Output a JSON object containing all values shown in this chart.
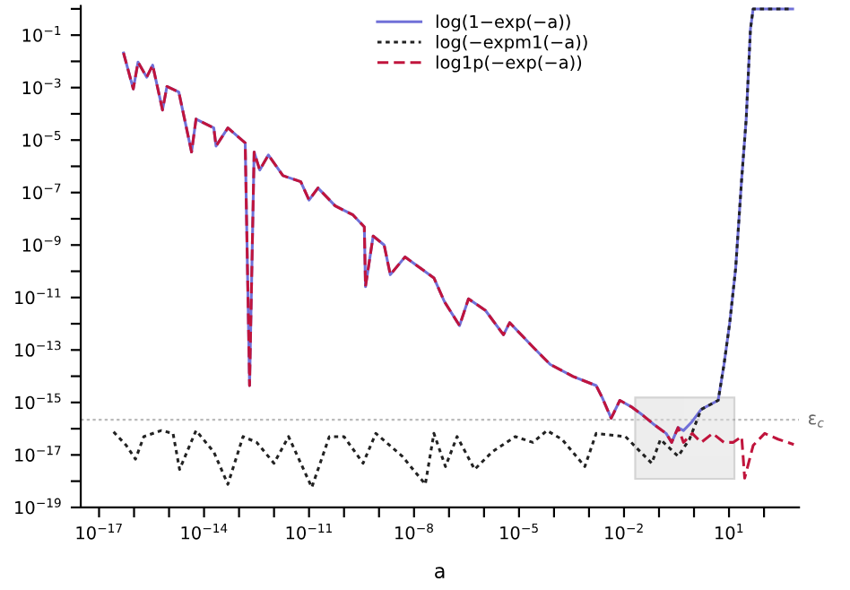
{
  "chart_data": {
    "type": "line",
    "xlabel": "a",
    "series": [
      {
        "name": "log(1−exp(−a))",
        "color": "#7070d8",
        "line_style": "solid",
        "x": [
          5e-17,
          9.5e-17,
          1.3e-16,
          2.3e-16,
          3.4e-16,
          6.5e-16,
          8.7e-16,
          1.9e-15,
          4.4e-15,
          5.9e-15,
          1.9e-14,
          2.2e-14,
          4.8e-14,
          1.5e-13,
          2e-13,
          2.7e-13,
          3.9e-13,
          6.9e-13,
          1.8e-12,
          5.8e-12,
          1e-11,
          1.8e-11,
          5.6e-11,
          1.8e-10,
          3.8e-10,
          4.1e-10,
          6.8e-10,
          1.4e-09,
          2.1e-09,
          5.5e-09,
          3.7e-08,
          7.4e-08,
          2e-07,
          3.6e-07,
          1.1e-06,
          3.6e-06,
          5.4e-06,
          2.5e-05,
          7.8e-05,
          0.00035,
          0.0016,
          0.0024,
          0.0043,
          0.0076,
          0.016,
          0.035,
          0.074,
          0.16,
          0.23,
          0.35,
          0.5,
          0.89,
          1.6,
          4.9,
          7.2,
          10.5,
          15.5,
          23,
          31,
          41,
          49,
          660
        ],
        "values": [
          0.021,
          0.00089,
          0.0093,
          0.0025,
          0.0072,
          0.00014,
          0.0011,
          0.00068,
          3.5e-06,
          6.3e-05,
          2.9e-05,
          5.9e-06,
          2.9e-05,
          7.8e-06,
          4.4e-15,
          3.5e-06,
          7.2e-07,
          2.7e-06,
          4.4e-07,
          2.6e-07,
          5.2e-08,
          1.5e-07,
          3.1e-08,
          1.4e-08,
          4.9e-09,
          2.6e-11,
          2.2e-09,
          1e-09,
          7.4e-11,
          3.5e-10,
          5.6e-11,
          6.9e-12,
          8.5e-13,
          8.9e-12,
          3.2e-12,
          3.8e-13,
          1.1e-12,
          1.3e-13,
          2.8e-14,
          9.8e-15,
          4.4e-15,
          1.5e-15,
          2.5e-16,
          1.2e-15,
          6.9e-16,
          3.2e-16,
          1.4e-16,
          6.6e-17,
          3e-17,
          1.1e-16,
          8.5e-17,
          1.9e-16,
          5.4e-16,
          1.2e-15,
          2.8e-14,
          1.1e-12,
          1.3e-10,
          3.3e-07,
          6.3e-05,
          0.17,
          1,
          1
        ]
      },
      {
        "name": "log(−expm1(−a))",
        "color": "#222222",
        "line_style": "dotted",
        "x": [
          2.6e-17,
          6e-17,
          1.1e-16,
          1.9e-16,
          6e-16,
          1.3e-15,
          2e-15,
          5.9e-15,
          1.9e-14,
          4.8e-14,
          1.3e-13,
          3.2e-13,
          1e-12,
          2.6e-12,
          1.2e-11,
          3.8e-11,
          1e-10,
          3.5e-10,
          8.1e-10,
          4.6e-09,
          2.1e-08,
          3.7e-08,
          7.9e-08,
          1.7e-07,
          5.4e-07,
          1.7e-06,
          7.8e-06,
          2.5e-05,
          6.3e-05,
          0.00017,
          0.00076,
          0.0016,
          0.011,
          0.062,
          0.11,
          0.35,
          0.74,
          1.6,
          4.9,
          7.2,
          10.5,
          15.5,
          23,
          31,
          41,
          49,
          660
        ],
        "values": [
          7.6e-17,
          2.3e-17,
          6.9e-18,
          5e-17,
          8.5e-17,
          6.6e-17,
          2.8e-18,
          8.5e-17,
          1.3e-17,
          7.6e-19,
          5e-17,
          3e-17,
          4.8e-18,
          5e-17,
          5.8e-19,
          5e-17,
          5e-17,
          4.8e-18,
          6.6e-17,
          8.9e-18,
          7.6e-19,
          6.6e-17,
          3.6e-18,
          5e-17,
          2.8e-18,
          1.3e-17,
          5e-17,
          3e-17,
          8.5e-17,
          3.9e-17,
          3.6e-18,
          6.6e-17,
          5e-17,
          4.8e-18,
          3.9e-17,
          8.9e-18,
          3.9e-17,
          5.4e-16,
          1.2e-15,
          2.8e-14,
          1.1e-12,
          1.3e-10,
          3.3e-07,
          6.3e-05,
          0.17,
          1,
          1
        ]
      },
      {
        "name": "log1p(−exp(−a))",
        "color": "#c0143c",
        "line_style": "dashed",
        "x": [
          5e-17,
          9.5e-17,
          1.3e-16,
          2.3e-16,
          3.4e-16,
          6.5e-16,
          8.7e-16,
          1.9e-15,
          4.4e-15,
          5.9e-15,
          1.9e-14,
          2.2e-14,
          4.8e-14,
          1.5e-13,
          2e-13,
          2.7e-13,
          3.9e-13,
          6.9e-13,
          1.8e-12,
          5.8e-12,
          1e-11,
          1.8e-11,
          5.6e-11,
          1.8e-10,
          3.8e-10,
          4.1e-10,
          6.8e-10,
          1.4e-09,
          2.1e-09,
          5.5e-09,
          3.7e-08,
          7.4e-08,
          2e-07,
          3.6e-07,
          1.1e-06,
          3.6e-06,
          5.4e-06,
          2.5e-05,
          7.8e-05,
          0.00035,
          0.0016,
          0.0024,
          0.0043,
          0.0076,
          0.016,
          0.035,
          0.074,
          0.16,
          0.23,
          0.35,
          0.5,
          0.89,
          1.6,
          3.4,
          7.2,
          13,
          23,
          28,
          49,
          105,
          250,
          710
        ],
        "values": [
          0.021,
          0.00089,
          0.0093,
          0.0025,
          0.0072,
          0.00014,
          0.0011,
          0.00068,
          3.5e-06,
          6.3e-05,
          2.9e-05,
          5.9e-06,
          2.9e-05,
          7.8e-06,
          4.4e-15,
          3.5e-06,
          7.2e-07,
          2.7e-06,
          4.4e-07,
          2.6e-07,
          5.2e-08,
          1.5e-07,
          3.1e-08,
          1.4e-08,
          4.9e-09,
          2.6e-11,
          2.2e-09,
          1e-09,
          7.4e-11,
          3.5e-10,
          5.6e-11,
          6.9e-12,
          8.5e-13,
          8.9e-12,
          3.2e-12,
          3.8e-13,
          1.1e-12,
          1.3e-13,
          2.8e-14,
          9.8e-15,
          4.4e-15,
          1.5e-15,
          2.5e-16,
          1.2e-15,
          6.9e-16,
          3.2e-16,
          1.4e-16,
          6.6e-17,
          3e-17,
          1.1e-16,
          3e-17,
          6.6e-17,
          3e-17,
          6.6e-17,
          3e-17,
          3e-17,
          5e-17,
          1.3e-18,
          2.3e-17,
          6.6e-17,
          4e-17,
          2.5e-17
        ]
      }
    ],
    "log": "xy",
    "grid": false,
    "legend": "top",
    "xlim": [
      3e-18,
      1000
    ],
    "ylim": [
      1e-19,
      1.3
    ],
    "xticks": [
      {
        "value": 1e-17,
        "label": "10$^{−17}$"
      },
      {
        "value": 1e-16,
        "label": null
      },
      {
        "value": 1e-15,
        "label": null
      },
      {
        "value": 1e-14,
        "label": "10$^{−14}$"
      },
      {
        "value": 1e-13,
        "label": null
      },
      {
        "value": 1e-12,
        "label": null
      },
      {
        "value": 1e-11,
        "label": "10$^{−11}$"
      },
      {
        "value": 1e-10,
        "label": null
      },
      {
        "value": 1e-09,
        "label": null
      },
      {
        "value": 1e-08,
        "label": "10$^{−8}$"
      },
      {
        "value": 1e-07,
        "label": null
      },
      {
        "value": 1e-06,
        "label": null
      },
      {
        "value": 1e-05,
        "label": "10$^{−5}$"
      },
      {
        "value": 0.0001,
        "label": null
      },
      {
        "value": 0.001,
        "label": null
      },
      {
        "value": 0.01,
        "label": "10$^{−2}$"
      },
      {
        "value": 0.1,
        "label": null
      },
      {
        "value": 1,
        "label": null
      },
      {
        "value": 10,
        "label": "10$^{1}$"
      },
      {
        "value": 100,
        "label": null
      }
    ],
    "yticks": [
      {
        "value": 1e-19,
        "label": "10$^{−19}$"
      },
      {
        "value": 1e-18,
        "label": null
      },
      {
        "value": 1e-17,
        "label": "10$^{−17}$"
      },
      {
        "value": 1e-16,
        "label": null
      },
      {
        "value": 1e-15,
        "label": "10$^{−15}$"
      },
      {
        "value": 1e-14,
        "label": null
      },
      {
        "value": 1e-13,
        "label": "10$^{−13}$"
      },
      {
        "value": 1e-12,
        "label": null
      },
      {
        "value": 1e-11,
        "label": "10$^{−11}$"
      },
      {
        "value": 1e-10,
        "label": null
      },
      {
        "value": 1e-09,
        "label": "10$^{−9}$"
      },
      {
        "value": 1e-08,
        "label": null
      },
      {
        "value": 1e-07,
        "label": "10$^{−7}$"
      },
      {
        "value": 1e-06,
        "label": null
      },
      {
        "value": 1e-05,
        "label": "10$^{−5}$"
      },
      {
        "value": 0.0001,
        "label": null
      },
      {
        "value": 0.001,
        "label": "10$^{−3}$"
      },
      {
        "value": 0.01,
        "label": null
      },
      {
        "value": 0.1,
        "label": "10$^{−1}$"
      },
      {
        "value": 1,
        "label": null
      }
    ],
    "ref_lines": [
      {
        "axis": "y",
        "value": 2.2e-16,
        "label": "ε$_{c}$",
        "color": "#bbbbbb",
        "line_style": "dotted"
      }
    ]
  }
}
